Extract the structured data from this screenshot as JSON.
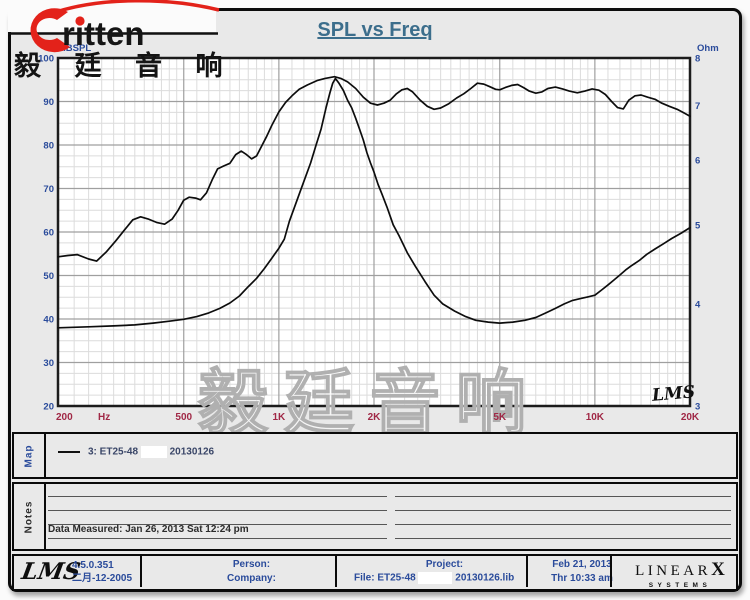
{
  "brand": {
    "logo_text": "ritten",
    "cn_name": "毅 廷 音 响",
    "watermark": "毅廷音响",
    "logo_color": "#e3221a"
  },
  "title": "SPL vs Freq",
  "axis_labels": {
    "left": "dBSPL",
    "right": "Ohm",
    "x_unit": "Hz"
  },
  "map": {
    "label": "Map",
    "entry_id": "3: ET25-48",
    "entry_file": "20130126"
  },
  "notes": {
    "label": "Notes",
    "data_measured": "Data Measured: Jan 26, 2013  Sat 12:24 pm"
  },
  "footer": {
    "lms_logo": "LMS",
    "version": "4.5.0.351",
    "version_date": "二月-12-2005",
    "person_label": "Person:",
    "company_label": "Company:",
    "project_label": "Project:",
    "file_text": "File: ET25-48",
    "lib_text": "20130126.lib",
    "date": "Feb 21, 2013",
    "time": "Thr 10:33 am",
    "brand2_line1": "LINEAR",
    "brand2_x": "X",
    "brand2_line2": "SYSTEMS"
  },
  "chart_lms": "LMS",
  "colors": {
    "panel": "#e9e9e9",
    "plot_bg": "#ffffff",
    "grid_minor": "#dcdcdc",
    "grid_major": "#9f9f9f",
    "frame": "#1c1c1c",
    "curve": "#0d0d0d",
    "tick_blue": "#2a4b9b",
    "tick_maroon": "#a02846",
    "title_blue": "#3c6e8c",
    "watermark_stroke": "#b0b0b0",
    "logo_red": "#e3221a"
  },
  "chart_data": {
    "type": "line",
    "title": "SPL vs Freq",
    "x_axis": {
      "label": "Hz",
      "scale": "log",
      "min": 200,
      "max": 20000,
      "ticks": [
        200,
        500,
        1000,
        2000,
        5000,
        10000,
        20000
      ],
      "tick_labels": [
        "200",
        "500",
        "1K",
        "2K",
        "5K",
        "10K",
        "20K"
      ],
      "minor": [
        225,
        250,
        275,
        300,
        325,
        350,
        375,
        400,
        425,
        450,
        475,
        550,
        600,
        650,
        700,
        750,
        800,
        850,
        900,
        950,
        1100,
        1200,
        1300,
        1400,
        1500,
        1600,
        1700,
        1800,
        1900,
        2250,
        2500,
        2750,
        3000,
        3250,
        3500,
        3750,
        4000,
        4250,
        4500,
        4750,
        5500,
        6000,
        6500,
        7000,
        7500,
        8000,
        8500,
        9000,
        9500,
        11000,
        12000,
        13000,
        14000,
        15000,
        16000,
        17000,
        18000,
        19000
      ],
      "major": [
        500,
        1000,
        2000,
        5000,
        10000
      ]
    },
    "y_left": {
      "label": "dBSPL",
      "scale": "linear",
      "min": 20,
      "max": 100,
      "ticks": [
        100,
        90,
        80,
        70,
        60,
        50,
        40,
        30,
        20
      ],
      "minor_step": 2.5,
      "major_step": 10
    },
    "y_right": {
      "label": "Ohm",
      "scale": "log",
      "min": 3,
      "max": 8,
      "ticks": [
        8,
        7,
        6,
        5,
        4,
        3
      ]
    },
    "grid": true,
    "legend": "3: ET25-48  20130126",
    "series": [
      {
        "name": "SPL  3: ET25-48 20130126",
        "axis": "left",
        "unit": "dBSPL",
        "points": [
          [
            200,
            54.3
          ],
          [
            215,
            54.6
          ],
          [
            230,
            54.8
          ],
          [
            250,
            53.8
          ],
          [
            265,
            53.3
          ],
          [
            285,
            55.5
          ],
          [
            305,
            58
          ],
          [
            325,
            60.5
          ],
          [
            345,
            62.8
          ],
          [
            365,
            63.5
          ],
          [
            385,
            63
          ],
          [
            410,
            62.2
          ],
          [
            435,
            61.8
          ],
          [
            460,
            63
          ],
          [
            480,
            65
          ],
          [
            500,
            67.3
          ],
          [
            520,
            68
          ],
          [
            545,
            67.8
          ],
          [
            565,
            67.4
          ],
          [
            590,
            69
          ],
          [
            615,
            72
          ],
          [
            640,
            74.5
          ],
          [
            670,
            75.2
          ],
          [
            700,
            75.8
          ],
          [
            730,
            77.8
          ],
          [
            760,
            78.6
          ],
          [
            790,
            77.8
          ],
          [
            820,
            76.8
          ],
          [
            850,
            77.5
          ],
          [
            880,
            79.6
          ],
          [
            915,
            82
          ],
          [
            950,
            84.5
          ],
          [
            1000,
            87.6
          ],
          [
            1050,
            89.8
          ],
          [
            1100,
            91.3
          ],
          [
            1160,
            92.8
          ],
          [
            1230,
            93.8
          ],
          [
            1320,
            94.8
          ],
          [
            1400,
            95.3
          ],
          [
            1500,
            95.7
          ],
          [
            1570,
            95.3
          ],
          [
            1650,
            94.5
          ],
          [
            1750,
            93
          ],
          [
            1850,
            91
          ],
          [
            1950,
            89.6
          ],
          [
            2050,
            89.2
          ],
          [
            2150,
            89.6
          ],
          [
            2250,
            90.3
          ],
          [
            2350,
            91.7
          ],
          [
            2450,
            92.7
          ],
          [
            2550,
            93
          ],
          [
            2650,
            92.2
          ],
          [
            2800,
            90.3
          ],
          [
            2950,
            88.9
          ],
          [
            3100,
            88.2
          ],
          [
            3250,
            88.5
          ],
          [
            3450,
            89.5
          ],
          [
            3650,
            90.8
          ],
          [
            3850,
            91.8
          ],
          [
            4050,
            93
          ],
          [
            4250,
            94.2
          ],
          [
            4450,
            94
          ],
          [
            4650,
            93.4
          ],
          [
            4850,
            92.8
          ],
          [
            5000,
            92.7
          ],
          [
            5200,
            93.2
          ],
          [
            5450,
            93.7
          ],
          [
            5700,
            93.9
          ],
          [
            5950,
            93.2
          ],
          [
            6200,
            92.4
          ],
          [
            6500,
            91.9
          ],
          [
            6800,
            92.2
          ],
          [
            7100,
            93
          ],
          [
            7500,
            93.3
          ],
          [
            7900,
            92.9
          ],
          [
            8300,
            92.4
          ],
          [
            8800,
            92
          ],
          [
            9300,
            92.4
          ],
          [
            9800,
            92.9
          ],
          [
            10300,
            92.6
          ],
          [
            10800,
            91.6
          ],
          [
            11300,
            90
          ],
          [
            11800,
            88.6
          ],
          [
            12300,
            88.3
          ],
          [
            12800,
            90.3
          ],
          [
            13400,
            91.3
          ],
          [
            14000,
            91.5
          ],
          [
            14700,
            91
          ],
          [
            15500,
            90.5
          ],
          [
            16300,
            89.6
          ],
          [
            17200,
            88.9
          ],
          [
            18200,
            88.2
          ],
          [
            19100,
            87.4
          ],
          [
            20000,
            86.6
          ]
        ]
      },
      {
        "name": "Impedance",
        "axis": "right",
        "unit": "Ohm",
        "points": [
          [
            200,
            3.74
          ],
          [
            250,
            3.75
          ],
          [
            300,
            3.76
          ],
          [
            350,
            3.77
          ],
          [
            400,
            3.79
          ],
          [
            450,
            3.81
          ],
          [
            500,
            3.83
          ],
          [
            550,
            3.86
          ],
          [
            600,
            3.9
          ],
          [
            650,
            3.95
          ],
          [
            700,
            4.01
          ],
          [
            750,
            4.09
          ],
          [
            800,
            4.2
          ],
          [
            850,
            4.3
          ],
          [
            900,
            4.42
          ],
          [
            950,
            4.55
          ],
          [
            1000,
            4.68
          ],
          [
            1040,
            4.8
          ],
          [
            1080,
            5.05
          ],
          [
            1120,
            5.25
          ],
          [
            1160,
            5.45
          ],
          [
            1210,
            5.7
          ],
          [
            1260,
            5.95
          ],
          [
            1310,
            6.25
          ],
          [
            1360,
            6.55
          ],
          [
            1410,
            6.95
          ],
          [
            1450,
            7.25
          ],
          [
            1480,
            7.45
          ],
          [
            1510,
            7.55
          ],
          [
            1550,
            7.45
          ],
          [
            1600,
            7.3
          ],
          [
            1650,
            7.1
          ],
          [
            1700,
            6.95
          ],
          [
            1750,
            6.75
          ],
          [
            1800,
            6.55
          ],
          [
            1850,
            6.35
          ],
          [
            1900,
            6.12
          ],
          [
            1950,
            5.95
          ],
          [
            2000,
            5.8
          ],
          [
            2060,
            5.6
          ],
          [
            2120,
            5.45
          ],
          [
            2200,
            5.25
          ],
          [
            2300,
            5.0
          ],
          [
            2400,
            4.85
          ],
          [
            2550,
            4.62
          ],
          [
            2700,
            4.45
          ],
          [
            2900,
            4.26
          ],
          [
            3100,
            4.1
          ],
          [
            3300,
            4.0
          ],
          [
            3600,
            3.92
          ],
          [
            3900,
            3.86
          ],
          [
            4200,
            3.82
          ],
          [
            4600,
            3.8
          ],
          [
            5000,
            3.79
          ],
          [
            5500,
            3.8
          ],
          [
            6000,
            3.82
          ],
          [
            6500,
            3.85
          ],
          [
            7000,
            3.9
          ],
          [
            7500,
            3.95
          ],
          [
            8000,
            4.0
          ],
          [
            8500,
            4.04
          ],
          [
            9000,
            4.06
          ],
          [
            9500,
            4.08
          ],
          [
            10000,
            4.1
          ],
          [
            10500,
            4.16
          ],
          [
            11000,
            4.22
          ],
          [
            11500,
            4.28
          ],
          [
            12000,
            4.34
          ],
          [
            12500,
            4.4
          ],
          [
            13000,
            4.45
          ],
          [
            13800,
            4.52
          ],
          [
            14600,
            4.6
          ],
          [
            15500,
            4.67
          ],
          [
            16500,
            4.74
          ],
          [
            17500,
            4.81
          ],
          [
            18700,
            4.88
          ],
          [
            20000,
            4.96
          ]
        ]
      }
    ]
  }
}
